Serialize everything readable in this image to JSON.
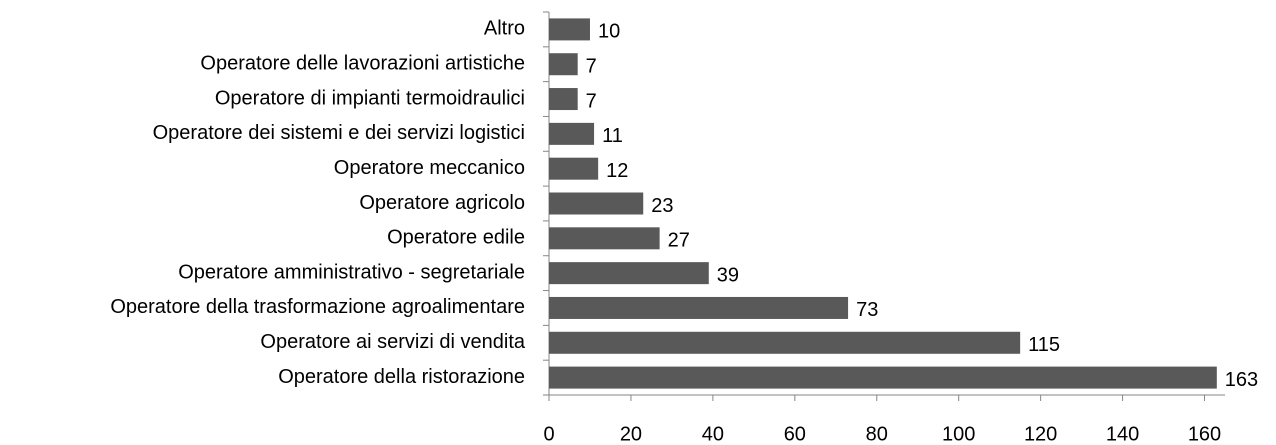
{
  "chart_data": {
    "type": "bar",
    "orientation": "horizontal",
    "categories": [
      "Altro",
      "Operatore delle lavorazioni artistiche",
      "Operatore di impianti termoidraulici",
      "Operatore dei sistemi e dei servizi logistici",
      "Operatore meccanico",
      "Operatore agricolo",
      "Operatore edile",
      "Operatore amministrativo - segretariale",
      "Operatore della trasformazione agroalimentare",
      "Operatore ai servizi di vendita",
      "Operatore della ristorazione"
    ],
    "values": [
      10,
      7,
      7,
      11,
      12,
      23,
      27,
      39,
      73,
      115,
      163
    ],
    "color": "#595959",
    "xlim": [
      0,
      165
    ],
    "xticks": [
      0,
      20,
      40,
      60,
      80,
      100,
      120,
      140,
      160
    ],
    "grid": false,
    "data_labels": true
  }
}
